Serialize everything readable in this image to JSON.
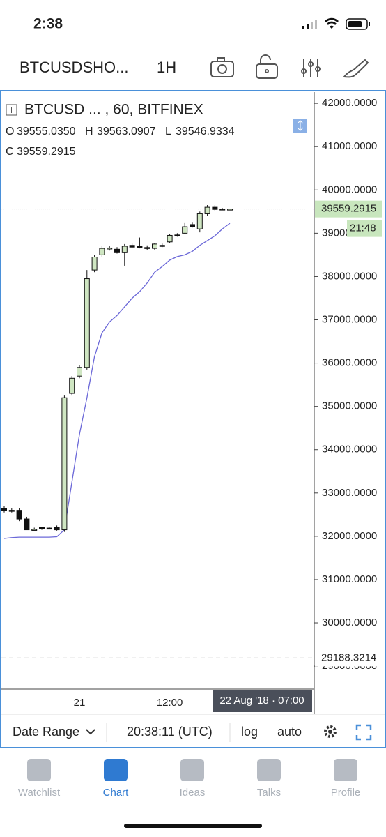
{
  "status": {
    "time": "2:38"
  },
  "header": {
    "symbol": "BTCUSDSHO...",
    "interval": "1H"
  },
  "legend": {
    "o_label": "O",
    "o": "39555.0350",
    "h_label": "H",
    "h": "39563.0907",
    "l_label": "L",
    "l": "39546.9334",
    "c_label": "C",
    "c": "39559.2915"
  },
  "chart_data": {
    "type": "candlestick",
    "title": "BTCUSD ... , 60, BITFINEX",
    "categories": [
      null,
      null,
      null,
      null,
      null,
      null,
      null,
      null,
      null,
      null,
      "21",
      null,
      null,
      null,
      null,
      null,
      null,
      null,
      null,
      null,
      null,
      null,
      "12:00",
      null,
      null,
      null,
      null,
      null,
      null,
      null,
      null
    ],
    "open": [
      32650,
      32600,
      32600,
      32400,
      32150,
      32200,
      32190,
      32200,
      32150,
      35300,
      35700,
      35900,
      38150,
      38500,
      38650,
      38630,
      38550,
      38720,
      38700,
      38670,
      38650,
      38720,
      38800,
      38960,
      39000,
      39200,
      39100,
      39450,
      39600,
      39560,
      39555.035
    ],
    "high": [
      32700,
      32650,
      32650,
      32450,
      32200,
      32220,
      32220,
      32250,
      35250,
      35700,
      35950,
      38150,
      38500,
      38700,
      38700,
      38680,
      38750,
      38760,
      38900,
      38720,
      38780,
      38760,
      38980,
      39000,
      39250,
      39260,
      39500,
      39650,
      39650,
      39580,
      39563.0907
    ],
    "low": [
      32550,
      32550,
      32350,
      32150,
      32150,
      32150,
      32170,
      32130,
      32100,
      35250,
      35650,
      35850,
      38100,
      38450,
      38600,
      38530,
      38250,
      38650,
      38650,
      38620,
      38620,
      38680,
      38780,
      38920,
      38980,
      39130,
      39020,
      39400,
      39520,
      39540,
      39546.9334
    ],
    "close": [
      32600,
      32600,
      32400,
      32150,
      32160,
      32190,
      32180,
      32150,
      35200,
      35650,
      35900,
      37950,
      38450,
      38650,
      38660,
      38550,
      38700,
      38680,
      38690,
      38650,
      38750,
      38710,
      38950,
      38940,
      39150,
      39150,
      39450,
      39600,
      39550,
      39555,
      39559.2915
    ],
    "up_color": "#cfe6c2",
    "down_color": "#111111",
    "ma": {
      "color": "#6b68d8",
      "values": [
        31950,
        31970,
        31980,
        31980,
        31980,
        31980,
        31980,
        31990,
        32150,
        33250,
        34350,
        35200,
        36150,
        36700,
        36950,
        37100,
        37300,
        37500,
        37650,
        37850,
        38100,
        38230,
        38380,
        38460,
        38500,
        38580,
        38720,
        38830,
        38940,
        39100,
        39230
      ]
    },
    "ylim": [
      28470,
      42260
    ],
    "yticks": [
      {
        "value": 29000,
        "label": "29000.0000"
      },
      {
        "value": 30000,
        "label": "30000.0000"
      },
      {
        "value": 31000,
        "label": "31000.0000"
      },
      {
        "value": 32000,
        "label": "32000.0000"
      },
      {
        "value": 33000,
        "label": "33000.0000"
      },
      {
        "value": 34000,
        "label": "34000.0000"
      },
      {
        "value": 35000,
        "label": "35000.0000"
      },
      {
        "value": 36000,
        "label": "36000.0000"
      },
      {
        "value": 37000,
        "label": "37000.0000"
      },
      {
        "value": 38000,
        "label": "38000.0000"
      },
      {
        "value": 39000,
        "label": "39000.0000"
      },
      {
        "value": 40000,
        "label": "40000.0000"
      },
      {
        "value": 41000,
        "label": "41000.0000"
      },
      {
        "value": 42000,
        "label": "42000.0000"
      }
    ],
    "last_price": 39559.2915,
    "countdown": "21:48",
    "reference_line": 29188.3214,
    "crosshair_label": "22 Aug '18 · 07:00"
  },
  "toolbar": {
    "date_range": "Date Range",
    "clock": "20:38:11 (UTC)",
    "log": "log",
    "auto": "auto"
  },
  "tabs": [
    "Watchlist",
    "Chart",
    "Ideas",
    "Talks",
    "Profile"
  ]
}
